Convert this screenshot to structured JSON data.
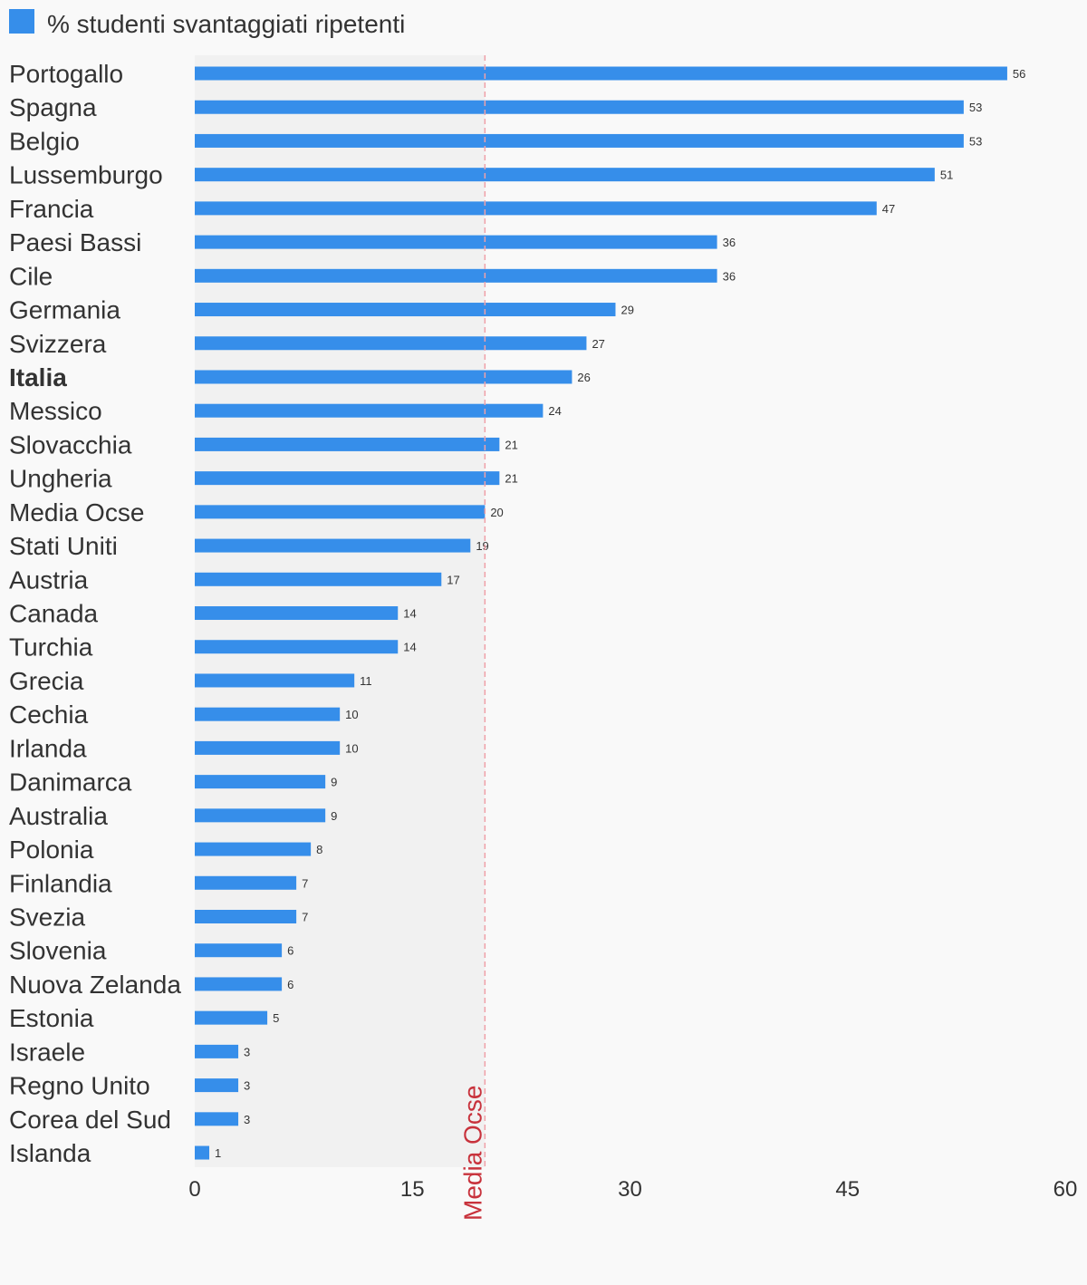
{
  "chart_data": {
    "type": "bar",
    "orientation": "horizontal",
    "legend": {
      "label": "% studenti svantaggiati ripetenti",
      "position": "top-left"
    },
    "series": [
      {
        "name": "% studenti svantaggiati ripetenti",
        "color": "#368eea",
        "values": [
          56,
          53,
          53,
          51,
          47,
          36,
          36,
          29,
          27,
          26,
          24,
          21,
          21,
          20,
          19,
          17,
          14,
          14,
          11,
          10,
          10,
          9,
          9,
          8,
          7,
          7,
          6,
          6,
          5,
          3,
          3,
          3,
          1
        ]
      }
    ],
    "categories": [
      "Portogallo",
      "Spagna",
      "Belgio",
      "Lussemburgo",
      "Francia",
      "Paesi Bassi",
      "Cile",
      "Germania",
      "Svizzera",
      "Italia",
      "Messico",
      "Slovacchia",
      "Ungheria",
      "Media Ocse",
      "Stati Uniti",
      "Austria",
      "Canada",
      "Turchia",
      "Grecia",
      "Cechia",
      "Irlanda",
      "Danimarca",
      "Australia",
      "Polonia",
      "Finlandia",
      "Svezia",
      "Slovenia",
      "Nuova Zelanda",
      "Estonia",
      "Israele",
      "Regno Unito",
      "Corea del Sud",
      "Islanda"
    ],
    "highlighted_category": "Italia",
    "xlim": [
      0,
      60
    ],
    "xticks": [
      "0",
      "15",
      "30",
      "45",
      "60"
    ],
    "reference_line": {
      "label": "Media Ocse",
      "value": 20,
      "color": "#c8323c",
      "shaded_region": [
        0,
        20
      ]
    },
    "grid": false
  }
}
